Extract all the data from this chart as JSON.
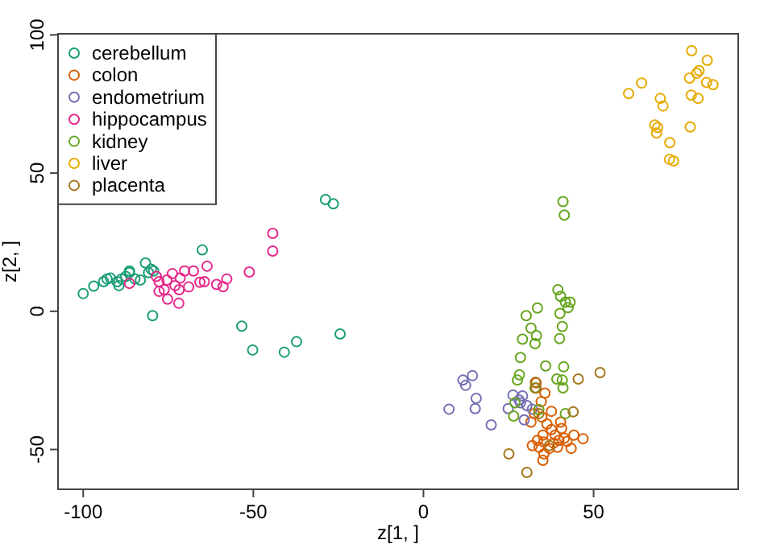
{
  "chart_data": {
    "type": "scatter",
    "xlabel": "z[1, ]",
    "ylabel": "z[2, ]",
    "xlim": [
      -107.4,
      92.5
    ],
    "ylim": [
      -64.4,
      100.4
    ],
    "xticks": [
      -100,
      -50,
      0,
      50
    ],
    "yticks": [
      -50,
      0,
      50,
      100
    ],
    "grid": false,
    "legend": "top left",
    "marker": "circle",
    "series": [
      {
        "name": "cerebellum",
        "color": "#1b9e77",
        "x": [
          -100,
          -96.9,
          -94,
          -93,
          -92,
          -90,
          -89.5,
          -88.7,
          -87.5,
          -86.4,
          -84.8,
          -83.2,
          -81.7,
          -80.8,
          -80,
          -79.6,
          -53.4,
          -50.2,
          -40.9,
          -37.3,
          -24.5,
          -28.8,
          -26.5,
          -65,
          -86.4,
          -79.3
        ],
        "values": [
          6.4,
          9.1,
          10.7,
          11.7,
          12,
          10.7,
          9.3,
          11.7,
          12.6,
          14,
          11.7,
          11.3,
          17.5,
          14,
          15.2,
          -1.6,
          -5.4,
          -14,
          -14.8,
          -11,
          -8.2,
          40.4,
          38.9,
          22.2,
          14.6,
          14.6
        ]
      },
      {
        "name": "colon",
        "color": "#d95f02",
        "x": [
          33.1,
          35.7,
          34.6,
          37.6,
          32.6,
          34.8,
          40.3,
          31.6,
          36.3,
          37.6,
          40.6,
          35.1,
          38.7,
          33.5,
          35.4,
          39.8,
          41.4,
          44.2,
          46.9,
          32,
          34,
          37,
          39.4,
          43.4,
          35.4,
          35.1,
          42.2,
          38.2
        ],
        "values": [
          -25.9,
          -29.6,
          -32.7,
          -36.2,
          -37,
          -38.3,
          -40.1,
          -40.1,
          -40.8,
          -42.8,
          -42.4,
          -44.8,
          -44.8,
          -46.7,
          -47.3,
          -46.7,
          -45.9,
          -44.8,
          -46.1,
          -48.6,
          -49.2,
          -49.6,
          -49.2,
          -49.6,
          -51.6,
          -53.9,
          -47.1,
          -47.7
        ]
      },
      {
        "name": "endometrium",
        "color": "#7570b3",
        "x": [
          11.6,
          14.4,
          12.4,
          7.5,
          15.5,
          15.2,
          19.9,
          24.9,
          26.3,
          29.1,
          28.1,
          28.5,
          30.4,
          29.6,
          32
        ],
        "values": [
          -24.9,
          -23.3,
          -26.8,
          -35.4,
          -31.5,
          -35.2,
          -41.1,
          -35.2,
          -30.3,
          -30.6,
          -32.1,
          -33.1,
          -34.1,
          -39.3,
          -35.4
        ]
      },
      {
        "name": "hippocampus",
        "color": "#e7298a",
        "x": [
          -44.3,
          -44.3,
          -51.2,
          -63.6,
          -57.8,
          -58.9,
          -60.8,
          -64.4,
          -65.7,
          -67.6,
          -69,
          -70.2,
          -71.5,
          -71.8,
          -71.9,
          -73,
          -73.8,
          -75.4,
          -75.2,
          -76.2,
          -77.7,
          -77.7,
          -78.5,
          -86.4
        ],
        "values": [
          28.2,
          21.8,
          14.2,
          16.3,
          11.7,
          8.9,
          9.7,
          10.7,
          10.5,
          14.6,
          8.8,
          14.6,
          12,
          7.8,
          2.9,
          9.3,
          13.6,
          11.3,
          4.4,
          7.8,
          10.7,
          7.2,
          12.6,
          10.1
        ]
      },
      {
        "name": "kidney",
        "color": "#66a61e",
        "x": [
          41,
          41.4,
          39.5,
          40.3,
          41.7,
          43.1,
          42.5,
          33.5,
          30.2,
          40.1,
          31.6,
          40.8,
          33.2,
          29.1,
          32.8,
          40,
          28.5,
          35.9,
          41.2,
          27.6,
          28.2,
          32.8,
          39.2,
          40.8,
          41,
          26.9,
          26.5,
          41.7,
          33.9
        ],
        "values": [
          39.7,
          34.8,
          7.8,
          5.4,
          3.3,
          3.3,
          1.3,
          1.2,
          -1.6,
          -0.8,
          -6.1,
          -5.5,
          -8.8,
          -10.1,
          -11.7,
          -9.9,
          -16.7,
          -19.8,
          -20.1,
          -24.9,
          -23,
          -27.7,
          -24.5,
          -24.9,
          -27.7,
          -33.1,
          -37.9,
          -37,
          -35.6
        ]
      },
      {
        "name": "liver",
        "color": "#e6ab02",
        "x": [
          78.8,
          83.4,
          81,
          80.3,
          78.2,
          83.2,
          85.1,
          64.1,
          60.3,
          78.7,
          80.7,
          69.6,
          70.4,
          68,
          68.8,
          68.5,
          78.4,
          72.4,
          72.3,
          73.5
        ],
        "values": [
          94.3,
          90.8,
          87.1,
          86.1,
          84.4,
          82.8,
          82,
          82.6,
          78.8,
          78.2,
          77,
          77,
          74.3,
          67.4,
          66.5,
          64.5,
          66.7,
          61,
          55,
          54.4
        ]
      },
      {
        "name": "placenta",
        "color": "#a6761d",
        "x": [
          51.9,
          45.5,
          44,
          25.1,
          30.4,
          32.9,
          33.1,
          33.9,
          37
        ],
        "values": [
          -22.2,
          -24.5,
          -36.4,
          -51.6,
          -58.3,
          -25.7,
          -27.8,
          -37,
          -48.6
        ]
      }
    ]
  }
}
